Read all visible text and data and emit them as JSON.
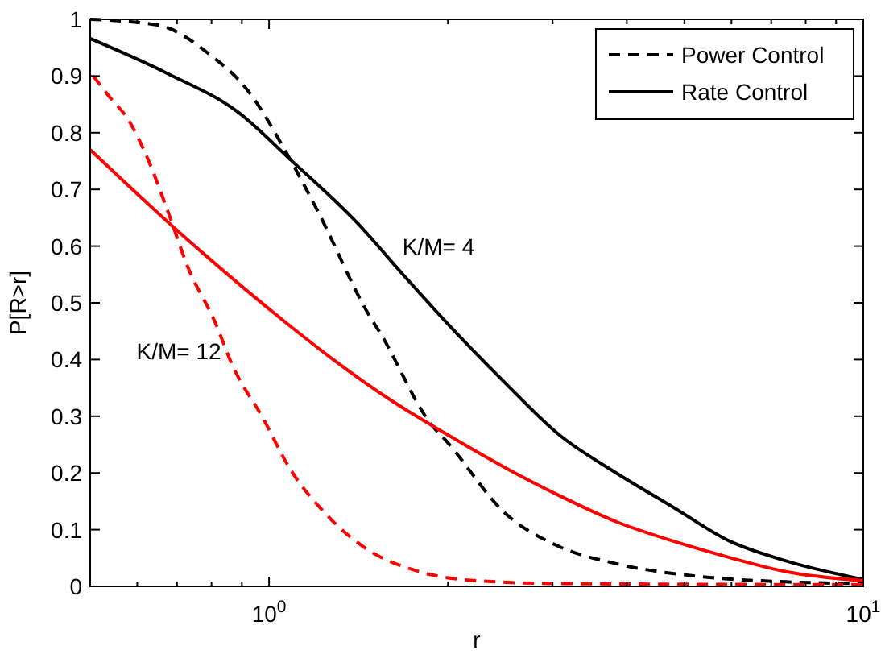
{
  "chart_data": {
    "type": "line",
    "xlabel": "r",
    "ylabel": "P[R>r]",
    "log": "x",
    "grid": false,
    "legend": "top right",
    "xlim": [
      0.5,
      10
    ],
    "ylim": [
      0,
      1
    ],
    "xticks": [
      {
        "value": 0.6,
        "label": null
      },
      {
        "value": 0.7,
        "label": null
      },
      {
        "value": 0.8,
        "label": null
      },
      {
        "value": 0.9,
        "label": null
      },
      {
        "value": 1,
        "label": "10$^{0}$"
      },
      {
        "value": 2,
        "label": null
      },
      {
        "value": 3,
        "label": null
      },
      {
        "value": 4,
        "label": null
      },
      {
        "value": 5,
        "label": null
      },
      {
        "value": 6,
        "label": null
      },
      {
        "value": 7,
        "label": null
      },
      {
        "value": 8,
        "label": null
      },
      {
        "value": 9,
        "label": null
      },
      {
        "value": 10,
        "label": "10$^{1}$"
      }
    ],
    "yticks": [
      0,
      0.1,
      0.2,
      0.3,
      0.4,
      0.5,
      0.6,
      0.7,
      0.8,
      0.9,
      1
    ],
    "annotations": [
      "K/M= 4",
      "K/M= 12"
    ],
    "series": [
      {
        "name": "Power Control",
        "color": "#000000",
        "line_style": "dashed",
        "x": [
          0.5,
          0.65,
          0.79,
          0.92,
          1.085,
          1.21,
          1.47,
          1.54,
          1.87,
          2.0,
          2.49,
          3.08,
          3.84,
          5.35,
          7.41,
          10
        ],
        "values": [
          1,
          0.99,
          0.94,
          0.875,
          0.753,
          0.66,
          0.48,
          0.446,
          0.287,
          0.253,
          0.13,
          0.07,
          0.04,
          0.017,
          0.008,
          0.005
        ]
      },
      {
        "name": "Rate Control",
        "color": "#000000",
        "line_style": "solid",
        "x": [
          0.5,
          0.67,
          0.89,
          1.085,
          1.41,
          1.68,
          1.95,
          2.49,
          3.08,
          3.84,
          4.78,
          5.95,
          7.41,
          10
        ],
        "values": [
          0.966,
          0.906,
          0.835,
          0.753,
          0.64,
          0.55,
          0.475,
          0.36,
          0.267,
          0.2,
          0.14,
          0.08,
          0.045,
          0.012
        ]
      },
      {
        "color": "#ff0000",
        "line_style": "solid",
        "x": [
          0.5,
          0.7,
          1.065,
          1.29,
          1.61,
          2.0,
          2.49,
          3.08,
          3.84,
          4.78,
          5.95,
          7.41,
          10
        ],
        "values": [
          0.77,
          0.628,
          0.466,
          0.398,
          0.327,
          0.267,
          0.21,
          0.16,
          0.114,
          0.08,
          0.051,
          0.026,
          0.01
        ]
      },
      {
        "color": "#ff0000",
        "line_style": "dashed",
        "x": [
          0.506,
          0.542,
          0.577,
          0.629,
          0.672,
          0.732,
          0.808,
          0.871,
          0.975,
          1.085,
          1.24,
          1.44,
          1.79,
          2.23,
          3.08,
          10
        ],
        "values": [
          0.9,
          0.86,
          0.826,
          0.747,
          0.668,
          0.56,
          0.47,
          0.386,
          0.298,
          0.207,
          0.13,
          0.07,
          0.026,
          0.01,
          0.005,
          0.003
        ]
      }
    ]
  }
}
